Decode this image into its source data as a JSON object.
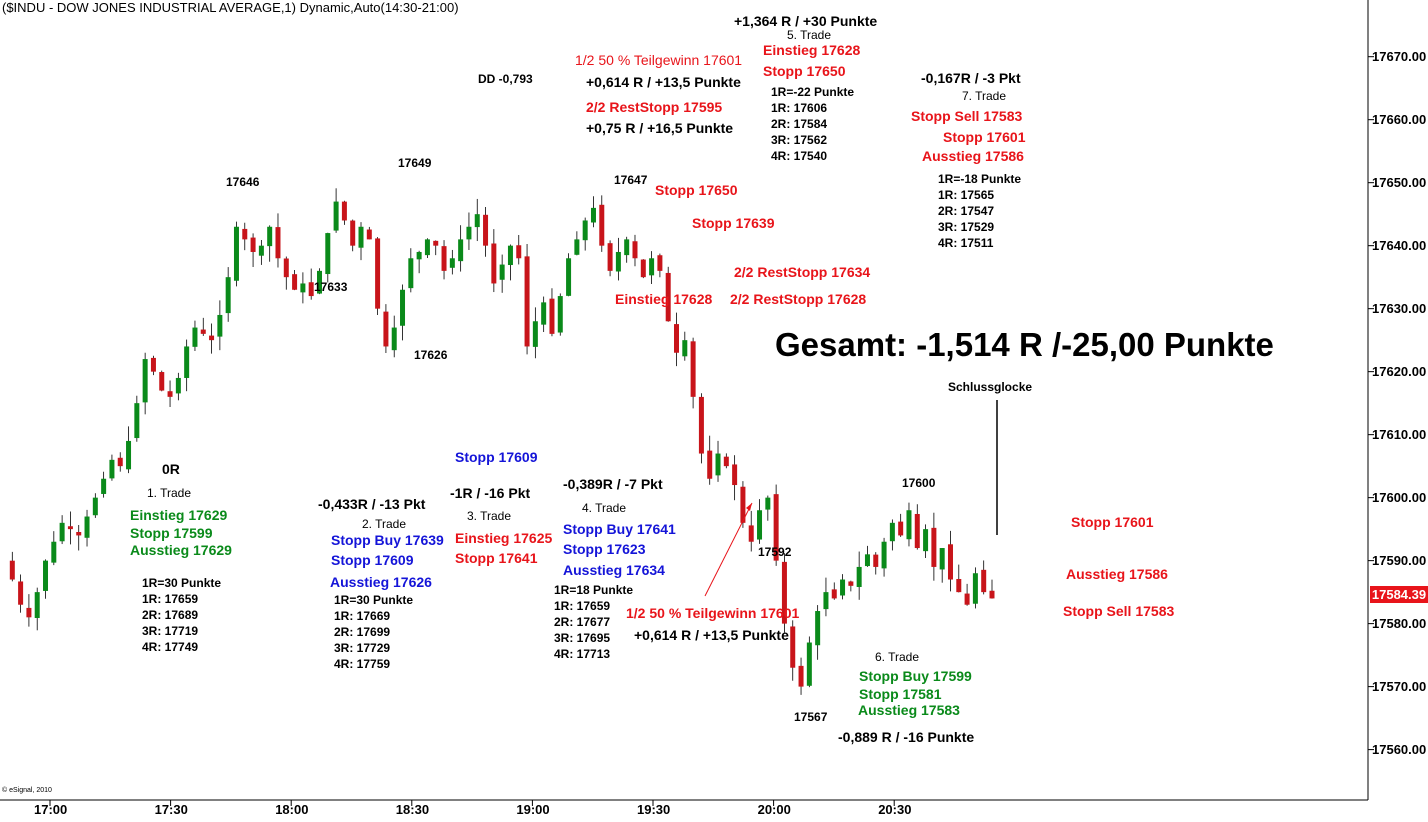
{
  "header": "($INDU - DOW JONES INDUSTRIAL AVERAGE,1) Dynamic,Auto(14:30-21:00)",
  "copyright": "© eSignal, 2010",
  "chart_data": {
    "type": "candlestick",
    "ylim": [
      17552,
      17679
    ],
    "yticks": [
      "17670.00",
      "17660.00",
      "17650.00",
      "17640.00",
      "17630.00",
      "17620.00",
      "17610.00",
      "17600.00",
      "17590.00",
      "17580.00",
      "17570.00",
      "17560.00"
    ],
    "xticks": [
      "17:00",
      "17:30",
      "18:00",
      "18:30",
      "19:00",
      "19:30",
      "20:00",
      "20:30"
    ],
    "last_price": "17584.39",
    "prices": [
      17590,
      17587,
      17583,
      17581,
      17585,
      17590,
      17593,
      17596,
      17595,
      17594,
      17597,
      17600,
      17603,
      17606,
      17605,
      17609,
      17615,
      17622,
      17620,
      17617,
      17616,
      17619,
      17624,
      17627,
      17626,
      17625,
      17629,
      17635,
      17643,
      17641,
      17639,
      17640,
      17643,
      17638,
      17635,
      17633,
      17634,
      17632,
      17636,
      17642,
      17647,
      17644,
      17640,
      17643,
      17641,
      17630,
      17624,
      17627,
      17633,
      17638,
      17639,
      17641,
      17640,
      17636,
      17638,
      17641,
      17643,
      17645,
      17640,
      17634,
      17637,
      17640,
      17638,
      17624,
      17628,
      17631,
      17626,
      17632,
      17638,
      17641,
      17644,
      17646,
      17640,
      17636,
      17639,
      17641,
      17638,
      17635,
      17638,
      17636,
      17628,
      17623,
      17625,
      17616,
      17607,
      17603,
      17607,
      17605,
      17602,
      17596,
      17593,
      17598,
      17600,
      17590,
      17580,
      17573,
      17570,
      17577,
      17582,
      17585,
      17584,
      17587,
      17586,
      17589,
      17591,
      17589,
      17593,
      17596,
      17594,
      17598,
      17592,
      17595,
      17589,
      17592,
      17587,
      17585,
      17583,
      17588,
      17585,
      17584
    ],
    "labels": [
      {
        "text": "17646",
        "price": 17646
      },
      {
        "text": "17649",
        "price": 17649
      },
      {
        "text": "17633",
        "price": 17633
      },
      {
        "text": "17626",
        "price": 17626
      },
      {
        "text": "17647",
        "price": 17647
      },
      {
        "text": "17592",
        "price": 17592
      },
      {
        "text": "17600",
        "price": 17600
      },
      {
        "text": "17567",
        "price": 17567
      }
    ],
    "annotation_lines": [
      {
        "text": "Schlussglocke"
      }
    ]
  },
  "annotations": {
    "gesamt": "Gesamt: -1,514 R /-25,00 Punkte",
    "t1": {
      "r": "0R",
      "title": "1. Trade",
      "entry": "Einstieg 17629",
      "stop": "Stopp 17599",
      "exit": "Ausstieg 17629",
      "r1": "1R=30 Punkte",
      "l1": "1R: 17659",
      "l2": "2R: 17689",
      "l3": "3R: 17719",
      "l4": "4R: 17749"
    },
    "t2": {
      "r": "-0,433R / -13 Pkt",
      "title": "2. Trade",
      "buy": "Stopp Buy 17639",
      "stop": "Stopp 17609",
      "exit": "Ausstieg 17626",
      "r1": "1R=30 Punkte",
      "l1": "1R: 17669",
      "l2": "2R: 17699",
      "l3": "3R: 17729",
      "l4": "4R: 17759"
    },
    "t3": {
      "stopblue": "Stopp 17609",
      "r": "-1R / -16 Pkt",
      "title": "3. Trade",
      "entry": "Einstieg 17625",
      "stop": "Stopp 17641"
    },
    "t4": {
      "r": "-0,389R / -7 Pkt",
      "title": "4. Trade",
      "buy": "Stopp Buy 17641",
      "stop": "Stopp 17623",
      "exit": "Ausstieg 17634",
      "r1": "1R=18 Punkte",
      "l1": "1R: 17659",
      "l2": "2R: 17677",
      "l3": "3R: 17695",
      "l4": "4R: 17713",
      "partial": "1/2 50 % Teilgewinn 17601",
      "partial_r": "+0,614 R / +13,5 Punkte"
    },
    "t5": {
      "r": "+1,364 R / +30 Punkte",
      "title": "5. Trade",
      "entry": "Einstieg 17628",
      "stop": "Stopp 17650",
      "r1": "1R=-22 Punkte",
      "l1": "1R: 17606",
      "l2": "2R: 17584",
      "l3": "3R: 17562",
      "l4": "4R: 17540",
      "partial": "1/2 50 % Teilgewinn 17601",
      "partial_r": "+0,614 R / +13,5 Punkte",
      "rest": "2/2 RestStopp 17595",
      "rest_r": "+0,75 R / +16,5 Punkte",
      "dd": "DD -0,793",
      "stop650": "Stopp 17650",
      "stop639": "Stopp 17639",
      "rest634": "2/2 RestStopp 17634",
      "rest628": "2/2 RestStopp 17628",
      "entry628": "Einstieg 17628"
    },
    "t6": {
      "title": "6. Trade",
      "buy": "Stopp Buy 17599",
      "stop": "Stopp 17581",
      "exit": "Ausstieg 17583",
      "r": "-0,889 R / -16 Punkte"
    },
    "t7": {
      "r": "-0,167R / -3 Pkt",
      "title": "7. Trade",
      "sell": "Stopp Sell 17583",
      "stop": "Stopp 17601",
      "exit": "Ausstieg 17586",
      "r1": "1R=-18 Punkte",
      "l1": "1R: 17565",
      "l2": "2R: 17547",
      "l3": "3R: 17529",
      "l4": "4R: 17511"
    },
    "right": {
      "stop": "Stopp 17601",
      "exit": "Ausstieg 17586",
      "sell": "Stopp Sell 17583"
    }
  },
  "colors": {
    "up": "#0a8a1a",
    "down": "#c8141a",
    "red": "#e8141a",
    "blue": "#1414d8",
    "green": "#0a8a1a"
  }
}
